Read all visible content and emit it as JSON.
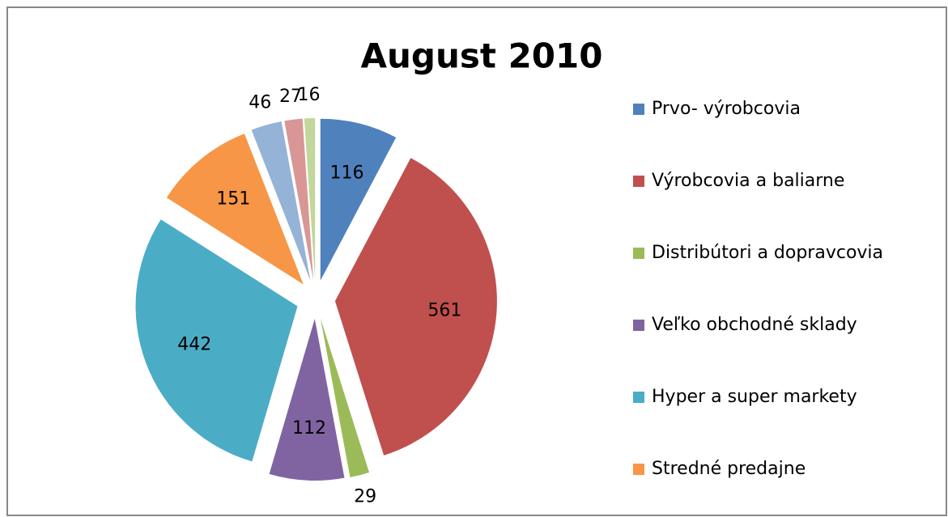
{
  "chart_data": {
    "type": "pie",
    "title": "August 2010",
    "categories": [
      "Prvo- výrobcovia",
      "Výrobcovia a baliarne",
      "Distribútori a dopravcovia",
      "Veľko obchodné sklady",
      "Hyper a super markety",
      "Stredné predajne",
      null,
      null,
      null
    ],
    "values": [
      116,
      561,
      29,
      112,
      442,
      151,
      46,
      27,
      16
    ],
    "colors": [
      "#4f81bd",
      "#c0504d",
      "#9bbb59",
      "#8064a2",
      "#4bacc6",
      "#f79646",
      "#95b3d7",
      "#d99694",
      "#c3d69b"
    ]
  }
}
